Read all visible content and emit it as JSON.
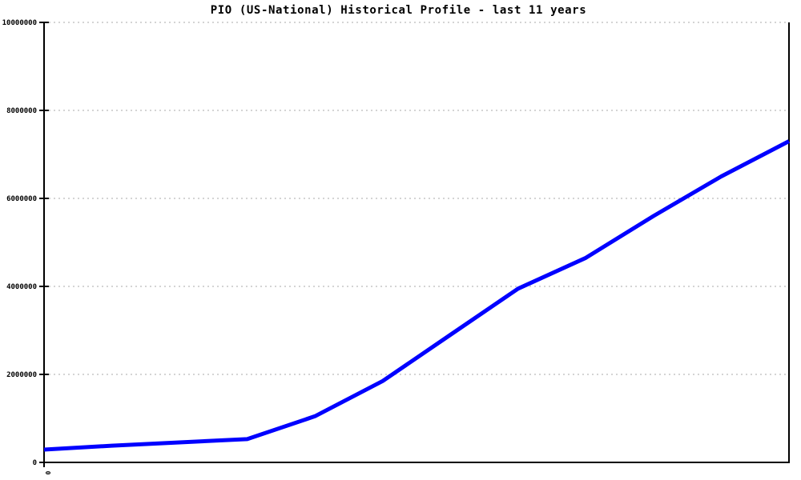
{
  "window": {
    "title": "PIO (US-National) Historical Profile - last 11 years"
  },
  "chart_data": {
    "type": "line",
    "title": "PIO (US-National) Historical Profile - last 11 years",
    "xlabel": "",
    "ylabel": "",
    "x": [
      0,
      1,
      2,
      3,
      4,
      5,
      6,
      7,
      8,
      9,
      10,
      11
    ],
    "series": [
      {
        "name": "PIO",
        "color": "#0000ff",
        "values": [
          290000,
          380000,
          455000,
          530000,
          1050000,
          1850000,
          2900000,
          3950000,
          4650000,
          5600000,
          6500000,
          7300000
        ]
      }
    ],
    "xlim": [
      0,
      11
    ],
    "ylim": [
      0,
      10000000
    ],
    "y_ticks": [
      {
        "value": 0,
        "label": "0"
      },
      {
        "value": 2000000,
        "label": "2000000"
      },
      {
        "value": 4000000,
        "label": "4000000"
      },
      {
        "value": 6000000,
        "label": "6000000"
      },
      {
        "value": 8000000,
        "label": "8000000"
      },
      {
        "value": 10000000,
        "label": "10000000"
      }
    ],
    "x_ticks": [
      {
        "value": 0,
        "label": "0"
      }
    ],
    "grid": "horizontal-dashed",
    "legend": "none"
  },
  "colors": {
    "background": "#ffffff",
    "line": "#0000ff",
    "grid": "#aaaaaa",
    "axis": "#000000",
    "text": "#000000"
  }
}
